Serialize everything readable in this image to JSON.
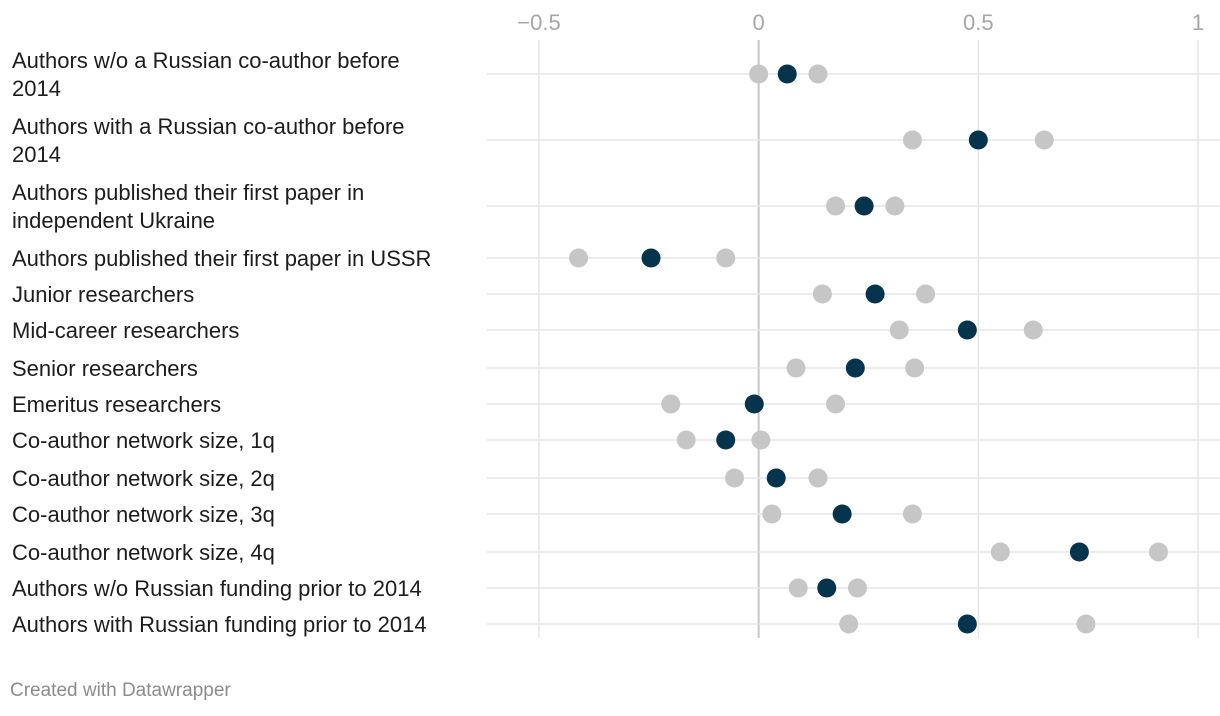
{
  "chart_data": {
    "type": "dot-range",
    "xlim": [
      -0.5,
      1
    ],
    "x_ticks": [
      -0.5,
      0,
      0.5,
      1
    ],
    "x_tick_labels": [
      "−0.5",
      "0",
      "0.5",
      "1"
    ],
    "grid": true,
    "colors": {
      "estimate": "#07344d",
      "interval": "#c6c6c6",
      "grid": "#e6e6e6",
      "zero_line": "#c8c8c8"
    },
    "rows": [
      {
        "label": [
          "Authors w/o a Russian co-author before",
          "2014"
        ],
        "low": 0.0,
        "estimate": 0.065,
        "high": 0.135
      },
      {
        "label": [
          "Authors with a Russian co-author before",
          "2014"
        ],
        "low": 0.35,
        "estimate": 0.5,
        "high": 0.65
      },
      {
        "label": [
          "Authors published their first paper in",
          "independent Ukraine"
        ],
        "low": 0.175,
        "estimate": 0.24,
        "high": 0.31
      },
      {
        "label": [
          "Authors published their first paper in USSR"
        ],
        "low": -0.41,
        "estimate": -0.245,
        "high": -0.075
      },
      {
        "label": [
          "Junior researchers"
        ],
        "low": 0.145,
        "estimate": 0.265,
        "high": 0.38
      },
      {
        "label": [
          "Mid-career researchers"
        ],
        "low": 0.32,
        "estimate": 0.475,
        "high": 0.625
      },
      {
        "label": [
          "Senior researchers"
        ],
        "low": 0.085,
        "estimate": 0.22,
        "high": 0.355
      },
      {
        "label": [
          "Emeritus researchers"
        ],
        "low": -0.2,
        "estimate": -0.01,
        "high": 0.175
      },
      {
        "label": [
          "Co-author network size, 1q"
        ],
        "low": -0.165,
        "estimate": -0.075,
        "high": 0.005
      },
      {
        "label": [
          "Co-author network size, 2q"
        ],
        "low": -0.055,
        "estimate": 0.04,
        "high": 0.135
      },
      {
        "label": [
          "Co-author network size, 3q"
        ],
        "low": 0.03,
        "estimate": 0.19,
        "high": 0.35
      },
      {
        "label": [
          "Co-author network size, 4q"
        ],
        "low": 0.55,
        "estimate": 0.73,
        "high": 0.91
      },
      {
        "label": [
          "Authors w/o Russian funding prior to 2014"
        ],
        "low": 0.09,
        "estimate": 0.155,
        "high": 0.225
      },
      {
        "label": [
          "Authors with Russian funding prior to 2014"
        ],
        "low": 0.205,
        "estimate": 0.475,
        "high": 0.745
      }
    ]
  },
  "footer": {
    "credit": "Created with Datawrapper"
  }
}
